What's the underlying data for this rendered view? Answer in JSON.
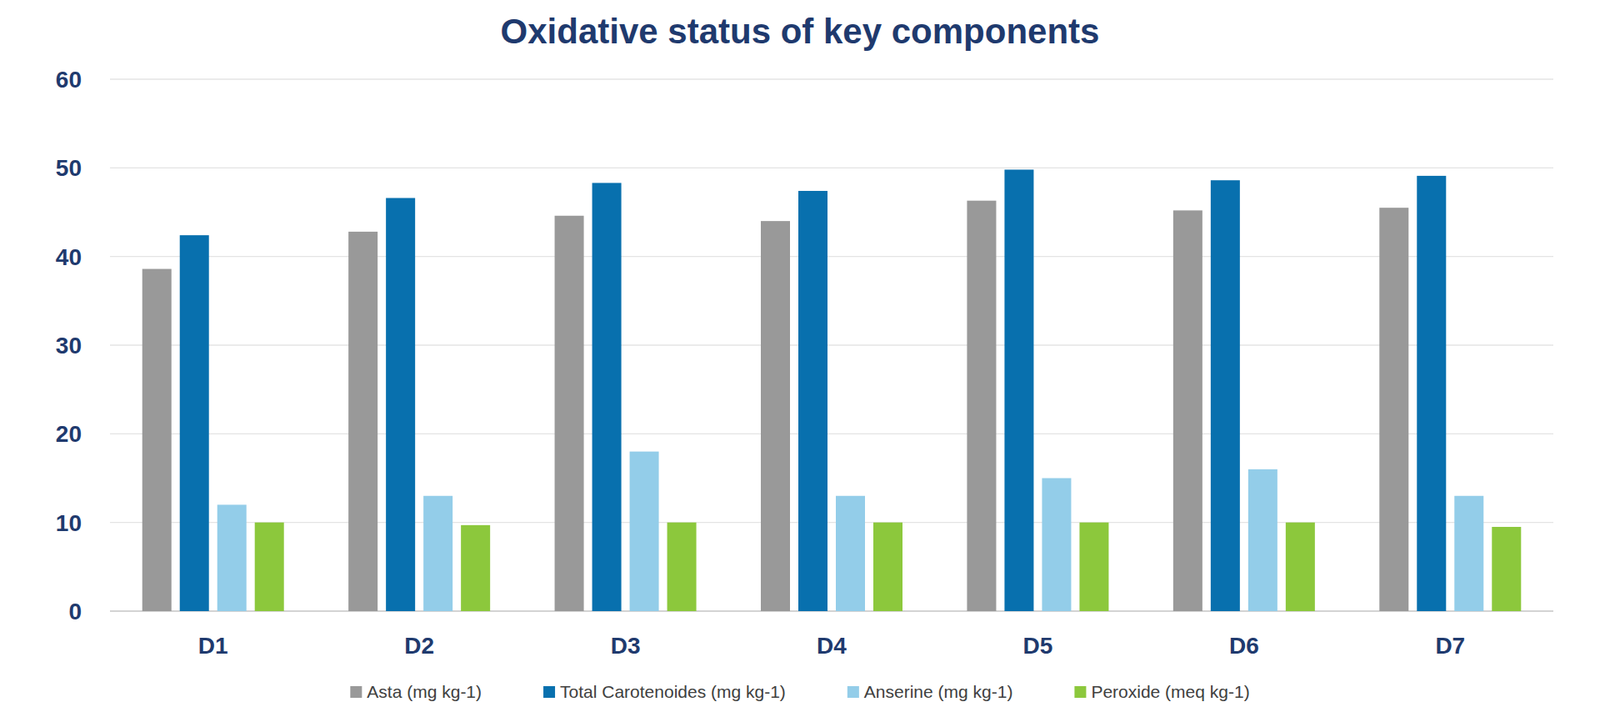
{
  "chart_data": {
    "type": "bar",
    "title": "Oxidative status of key components",
    "categories": [
      "D1",
      "D2",
      "D3",
      "D4",
      "D5",
      "D6",
      "D7"
    ],
    "series": [
      {
        "name": "Asta (mg kg-1)",
        "color": "#999999",
        "values": [
          38.6,
          42.8,
          44.6,
          44.0,
          46.3,
          45.2,
          45.5
        ]
      },
      {
        "name": "Total Carotenoides (mg kg-1)",
        "color": "#0870ae",
        "values": [
          42.4,
          46.6,
          48.3,
          47.4,
          49.8,
          48.6,
          49.1
        ]
      },
      {
        "name": "Anserine (mg kg-1)",
        "color": "#93cde9",
        "values": [
          12,
          13,
          18,
          13,
          15,
          16,
          13
        ]
      },
      {
        "name": "Peroxide (meq kg-1)",
        "color": "#8cc83c",
        "values": [
          10,
          9.7,
          10,
          10,
          10,
          10,
          9.5
        ]
      }
    ],
    "ylim": [
      0,
      60
    ],
    "yticks": [
      0,
      10,
      20,
      30,
      40,
      50,
      60
    ],
    "grid": true,
    "legend": "bottom"
  }
}
